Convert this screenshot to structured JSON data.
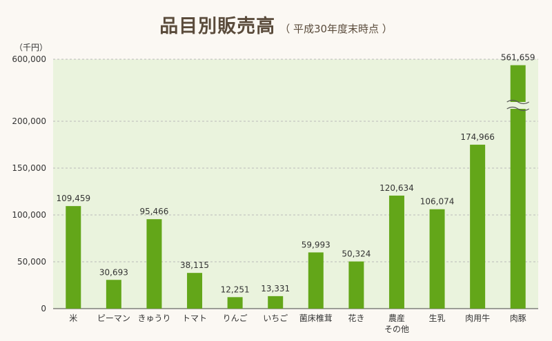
{
  "title": {
    "main": "品目別販売高",
    "sub": "（ 平成30年度末時点 ）"
  },
  "unit_label": "（千円）",
  "colors": {
    "bar": "#63a619",
    "plot_bg": "#eaf3dd",
    "grid": "#b9b9b9",
    "page_bg": "#fbf8f3"
  },
  "chart_data": {
    "type": "bar",
    "y_axis_break": {
      "lower_max": 200000,
      "upper_value": 600000
    },
    "ylim": [
      0,
      600000
    ],
    "y_ticks": [
      {
        "value": 0,
        "label": "0"
      },
      {
        "value": 50000,
        "label": "50,000"
      },
      {
        "value": 100000,
        "label": "100,000"
      },
      {
        "value": 150000,
        "label": "150,000"
      },
      {
        "value": 200000,
        "label": "200,000"
      },
      {
        "value": 600000,
        "label": "600,000"
      }
    ],
    "categories": [
      [
        "米"
      ],
      [
        "ピーマン"
      ],
      [
        "きゅうり"
      ],
      [
        "トマト"
      ],
      [
        "りんご"
      ],
      [
        "いちご"
      ],
      [
        "菌床椎茸"
      ],
      [
        "花き"
      ],
      [
        "農産",
        "その他"
      ],
      [
        "生乳"
      ],
      [
        "肉用牛"
      ],
      [
        "肉豚"
      ]
    ],
    "values": [
      109459,
      30693,
      95466,
      38115,
      12251,
      13331,
      59993,
      50324,
      120634,
      106074,
      174966,
      561659
    ],
    "value_labels": [
      "109,459",
      "30,693",
      "95,466",
      "38,115",
      "12,251",
      "13,331",
      "59,993",
      "50,324",
      "120,634",
      "106,074",
      "174,966",
      "561,659"
    ],
    "grid": true
  }
}
